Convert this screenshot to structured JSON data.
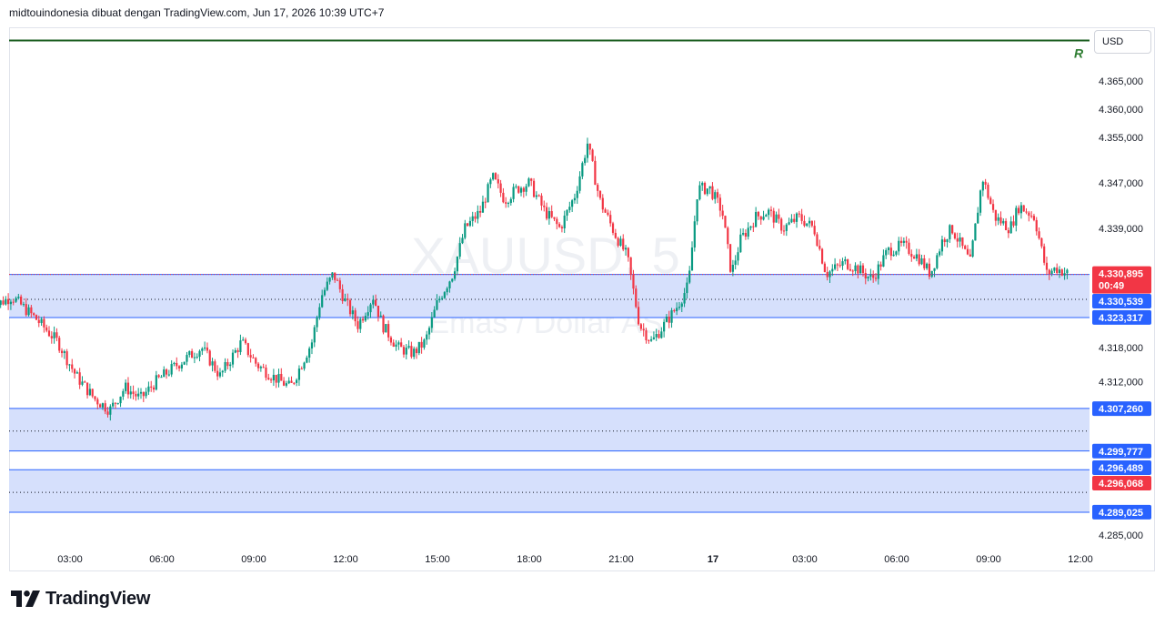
{
  "header": {
    "title": "midtouindonesia dibuat dengan TradingView.com, Jun 17, 2026 10:39 UTC+7"
  },
  "currency_label": "USD",
  "watermark": {
    "symbol": "XAUUSD, 5",
    "description": "Emas / Dollar AS"
  },
  "brand": {
    "name": "TradingView"
  },
  "colors": {
    "up": "#089981",
    "down": "#f23645",
    "zone_fill": "#d6e0fc",
    "zone_line": "#2962ff",
    "resistance_line": "#1b5e20",
    "price_tag": "#f23645",
    "level_tag": "#2962ff"
  },
  "chart_data": {
    "type": "candlestick",
    "symbol": "XAUUSD",
    "timeframe": "5",
    "ylim": [
      4.2815,
      4.3745
    ],
    "y_ticks": [
      "4.285,000",
      "4.312,000",
      "4.318,000",
      "4.339,000",
      "4.347,000",
      "4.355,000",
      "4.360,000",
      "4.365,000"
    ],
    "y_tick_values": [
      4.285,
      4.312,
      4.318,
      4.339,
      4.347,
      4.355,
      4.36,
      4.365
    ],
    "x_ticks": [
      "03:00",
      "06:00",
      "09:00",
      "12:00",
      "15:00",
      "18:00",
      "21:00",
      "17",
      "03:00",
      "06:00",
      "09:00",
      "12:00"
    ],
    "x_tick_hours": [
      3,
      6,
      9,
      12,
      15,
      18,
      21,
      24,
      27,
      30,
      33,
      36
    ],
    "x_range_hours": [
      0.4,
      37.3
    ],
    "resistance": {
      "label": "R",
      "value": 4.3721
    },
    "zones": [
      {
        "top": 4.3309,
        "bottom": 4.3233,
        "mid": 4.3265
      },
      {
        "top": 4.3073,
        "bottom": 4.2998,
        "mid": 4.3033
      },
      {
        "top": 4.2965,
        "bottom": 4.289,
        "mid": 4.2925
      }
    ],
    "current_price": {
      "value": 4.3309,
      "label": "4.330,895",
      "countdown": "00:49"
    },
    "price_labels": [
      {
        "value": 4.330539,
        "label": "4.330,539",
        "kind": "level"
      },
      {
        "value": 4.323317,
        "label": "4.323,317",
        "kind": "level"
      },
      {
        "value": 4.30726,
        "label": "4.307,260",
        "kind": "level"
      },
      {
        "value": 4.299777,
        "label": "4.299,777",
        "kind": "level"
      },
      {
        "value": 4.296489,
        "label": "4.296,489",
        "kind": "level"
      },
      {
        "value": 4.296068,
        "label": "4.296,068",
        "kind": "price"
      },
      {
        "value": 4.289025,
        "label": "4.289,025",
        "kind": "level"
      }
    ],
    "price_path": [
      [
        0.4,
        4.325
      ],
      [
        1.1,
        4.327
      ],
      [
        1.9,
        4.323
      ],
      [
        2.6,
        4.319
      ],
      [
        3.2,
        4.313
      ],
      [
        3.8,
        4.309
      ],
      [
        4.3,
        4.307
      ],
      [
        4.8,
        4.311
      ],
      [
        5.3,
        4.309
      ],
      [
        5.8,
        4.312
      ],
      [
        6.5,
        4.315
      ],
      [
        7.3,
        4.318
      ],
      [
        7.9,
        4.313
      ],
      [
        8.6,
        4.319
      ],
      [
        9.1,
        4.315
      ],
      [
        9.6,
        4.313
      ],
      [
        10.2,
        4.311
      ],
      [
        10.9,
        4.319
      ],
      [
        11.2,
        4.327
      ],
      [
        11.6,
        4.331
      ],
      [
        12.0,
        4.326
      ],
      [
        12.4,
        4.322
      ],
      [
        12.9,
        4.327
      ],
      [
        13.2,
        4.322
      ],
      [
        13.7,
        4.318
      ],
      [
        14.2,
        4.317
      ],
      [
        14.6,
        4.319
      ],
      [
        15.0,
        4.326
      ],
      [
        15.5,
        4.331
      ],
      [
        15.9,
        4.339
      ],
      [
        16.4,
        4.342
      ],
      [
        16.8,
        4.348
      ],
      [
        17.2,
        4.344
      ],
      [
        17.6,
        4.346
      ],
      [
        18.0,
        4.347
      ],
      [
        18.5,
        4.342
      ],
      [
        19.0,
        4.339
      ],
      [
        19.5,
        4.345
      ],
      [
        19.9,
        4.354
      ],
      [
        20.3,
        4.344
      ],
      [
        20.8,
        4.338
      ],
      [
        21.2,
        4.334
      ],
      [
        21.6,
        4.322
      ],
      [
        22.0,
        4.319
      ],
      [
        22.4,
        4.322
      ],
      [
        22.8,
        4.325
      ],
      [
        23.2,
        4.329
      ],
      [
        23.5,
        4.346
      ],
      [
        23.9,
        4.346
      ],
      [
        24.3,
        4.342
      ],
      [
        24.6,
        4.331
      ],
      [
        24.9,
        4.337
      ],
      [
        25.4,
        4.341
      ],
      [
        25.8,
        4.342
      ],
      [
        26.3,
        4.339
      ],
      [
        26.8,
        4.341
      ],
      [
        27.3,
        4.339
      ],
      [
        27.7,
        4.331
      ],
      [
        28.3,
        4.333
      ],
      [
        28.7,
        4.332
      ],
      [
        29.2,
        4.33
      ],
      [
        29.7,
        4.335
      ],
      [
        30.2,
        4.336
      ],
      [
        30.7,
        4.334
      ],
      [
        31.1,
        4.331
      ],
      [
        31.5,
        4.337
      ],
      [
        31.8,
        4.339
      ],
      [
        32.4,
        4.333
      ],
      [
        32.8,
        4.348
      ],
      [
        33.2,
        4.341
      ],
      [
        33.7,
        4.339
      ],
      [
        34.0,
        4.343
      ],
      [
        34.5,
        4.341
      ],
      [
        34.9,
        4.331
      ],
      [
        35.2,
        4.332
      ],
      [
        35.6,
        4.331
      ]
    ]
  }
}
